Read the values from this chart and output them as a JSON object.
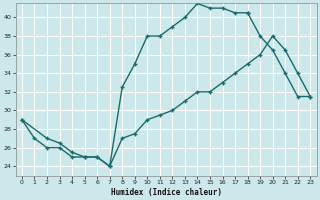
{
  "xlabel": "Humidex (Indice chaleur)",
  "bg_color": "#cce8ea",
  "line_color": "#1a6b6b",
  "grid_color": "#ffffff",
  "xlim": [
    -0.5,
    23.5
  ],
  "ylim": [
    23.0,
    41.5
  ],
  "xticks": [
    0,
    1,
    2,
    3,
    4,
    5,
    6,
    7,
    8,
    9,
    10,
    11,
    12,
    13,
    14,
    15,
    16,
    17,
    18,
    19,
    20,
    21,
    22,
    23
  ],
  "yticks": [
    24,
    26,
    28,
    30,
    32,
    34,
    36,
    38,
    40
  ],
  "series": [
    {
      "x": [
        0,
        1,
        2,
        3,
        4,
        5,
        6,
        7,
        8,
        9,
        10,
        11,
        12,
        13,
        14,
        15,
        16,
        17,
        18
      ],
      "y": [
        29,
        27,
        26,
        26,
        25,
        25,
        25,
        24,
        32.5,
        35,
        38,
        38,
        39,
        40,
        41.5,
        41,
        41,
        40.5,
        40.5
      ]
    },
    {
      "x": [
        0,
        2,
        3,
        4,
        5,
        6,
        7,
        8,
        9,
        10,
        11,
        12,
        13,
        14,
        15,
        16,
        17,
        18,
        19,
        20,
        21,
        22,
        23
      ],
      "y": [
        29,
        27,
        26.5,
        25.5,
        25,
        25,
        24,
        27,
        27.5,
        29,
        29.5,
        30,
        31,
        32,
        32,
        33,
        34,
        35,
        36,
        38,
        36.5,
        34,
        31.5
      ]
    },
    {
      "x": [
        18,
        19,
        20,
        21,
        22,
        23
      ],
      "y": [
        40.5,
        38,
        36.5,
        34,
        31.5,
        31.5
      ]
    }
  ]
}
